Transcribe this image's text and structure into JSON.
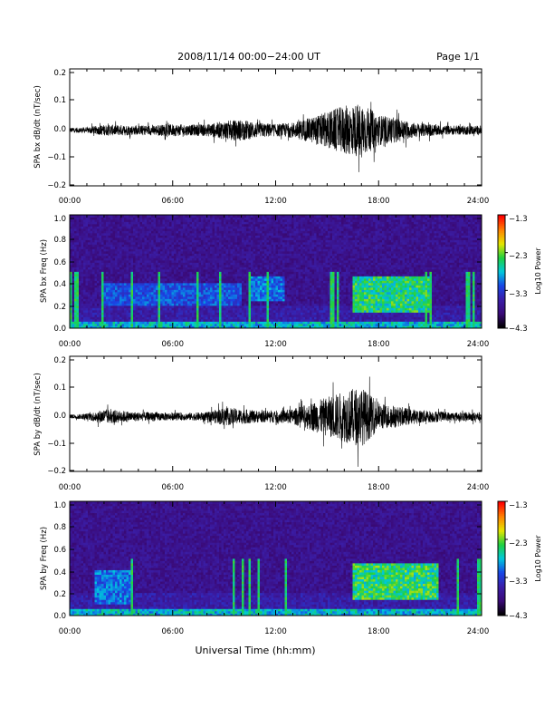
{
  "header": {
    "title": "2008/11/14  00:00−24:00 UT",
    "page": "Page 1/1"
  },
  "xlabel": "Universal Time (hh:mm)",
  "colors": {
    "background": "#ffffff",
    "axis": "#000000",
    "trace": "#000000",
    "colormap": [
      "#000000",
      "#3a0a78",
      "#3a1ea8",
      "#1846e6",
      "#00c8dc",
      "#20d040",
      "#e6e600",
      "#ff8000",
      "#ff0000"
    ]
  },
  "chart_data": [
    {
      "type": "line",
      "name": "bx_waveform",
      "ylabel": "SPA bx dB/dt (nT/sec)",
      "xlim": [
        0,
        24
      ],
      "ylim": [
        -0.2,
        0.22
      ],
      "x_ticks": [
        "00:00",
        "06:00",
        "12:00",
        "18:00",
        "24:00"
      ],
      "y_ticks": [
        "0.2",
        "0.1",
        "0.0",
        "−0.1",
        "−0.2"
      ],
      "envelope_hours": [
        0,
        1,
        2,
        3,
        4,
        5,
        6,
        7,
        8,
        9,
        10,
        11,
        12,
        13,
        14,
        15,
        16,
        17,
        18,
        19,
        20,
        21,
        22,
        23,
        24
      ],
      "envelope_amplitude": [
        0.015,
        0.02,
        0.035,
        0.035,
        0.03,
        0.035,
        0.04,
        0.035,
        0.04,
        0.06,
        0.07,
        0.05,
        0.04,
        0.05,
        0.08,
        0.12,
        0.16,
        0.18,
        0.1,
        0.08,
        0.05,
        0.04,
        0.03,
        0.03,
        0.03
      ]
    },
    {
      "type": "heatmap",
      "name": "bx_spectrogram",
      "ylabel": "SPA bx Freq (Hz)",
      "xlim": [
        0,
        24
      ],
      "ylim": [
        0,
        1.0
      ],
      "x_ticks": [
        "00:00",
        "06:00",
        "12:00",
        "18:00",
        "24:00"
      ],
      "y_ticks": [
        "1.0",
        "0.8",
        "0.6",
        "0.4",
        "0.2",
        "0.0"
      ],
      "colorbar": {
        "label": "Log10 Power",
        "range": [
          -4.3,
          -1.3
        ],
        "ticks": [
          "−1.3",
          "−2.3",
          "−3.3",
          "−4.3"
        ]
      },
      "features": [
        {
          "t": [
            16.5,
            21.0
          ],
          "f": [
            0.15,
            0.45
          ],
          "level": 0.7
        },
        {
          "t": [
            2.0,
            10.0
          ],
          "f": [
            0.2,
            0.4
          ],
          "level": 0.45
        },
        {
          "t": [
            10.5,
            12.5
          ],
          "f": [
            0.25,
            0.45
          ],
          "level": 0.5
        },
        {
          "t": [
            0.0,
            24.0
          ],
          "f": [
            0.0,
            0.05
          ],
          "level": 0.6
        }
      ]
    },
    {
      "type": "line",
      "name": "by_waveform",
      "ylabel": "SPA by dB/dt (nT/sec)",
      "xlim": [
        0,
        24
      ],
      "ylim": [
        -0.2,
        0.22
      ],
      "x_ticks": [
        "00:00",
        "06:00",
        "12:00",
        "18:00",
        "24:00"
      ],
      "y_ticks": [
        "0.2",
        "0.1",
        "0.0",
        "−0.1",
        "−0.2"
      ],
      "envelope_hours": [
        0,
        1,
        2,
        3,
        4,
        5,
        6,
        7,
        8,
        9,
        10,
        11,
        12,
        13,
        14,
        15,
        16,
        17,
        18,
        19,
        20,
        21,
        22,
        23,
        24
      ],
      "envelope_amplitude": [
        0.012,
        0.02,
        0.05,
        0.04,
        0.03,
        0.03,
        0.025,
        0.025,
        0.03,
        0.06,
        0.05,
        0.04,
        0.04,
        0.05,
        0.09,
        0.13,
        0.17,
        0.2,
        0.09,
        0.07,
        0.05,
        0.04,
        0.03,
        0.03,
        0.03
      ]
    },
    {
      "type": "heatmap",
      "name": "by_spectrogram",
      "ylabel": "SPA by Freq (Hz)",
      "xlim": [
        0,
        24
      ],
      "ylim": [
        0,
        1.0
      ],
      "x_ticks": [
        "00:00",
        "06:00",
        "12:00",
        "18:00",
        "24:00"
      ],
      "y_ticks": [
        "1.0",
        "0.8",
        "0.6",
        "0.4",
        "0.2",
        "0.0"
      ],
      "colorbar": {
        "label": "Log10 Power",
        "range": [
          -4.3,
          -1.3
        ],
        "ticks": [
          "−1.3",
          "−2.3",
          "−3.3",
          "−4.3"
        ]
      },
      "features": [
        {
          "t": [
            16.5,
            21.5
          ],
          "f": [
            0.15,
            0.45
          ],
          "level": 0.72
        },
        {
          "t": [
            1.5,
            3.5
          ],
          "f": [
            0.1,
            0.4
          ],
          "level": 0.5
        },
        {
          "t": [
            0.0,
            24.0
          ],
          "f": [
            0.0,
            0.05
          ],
          "level": 0.6
        }
      ]
    }
  ]
}
